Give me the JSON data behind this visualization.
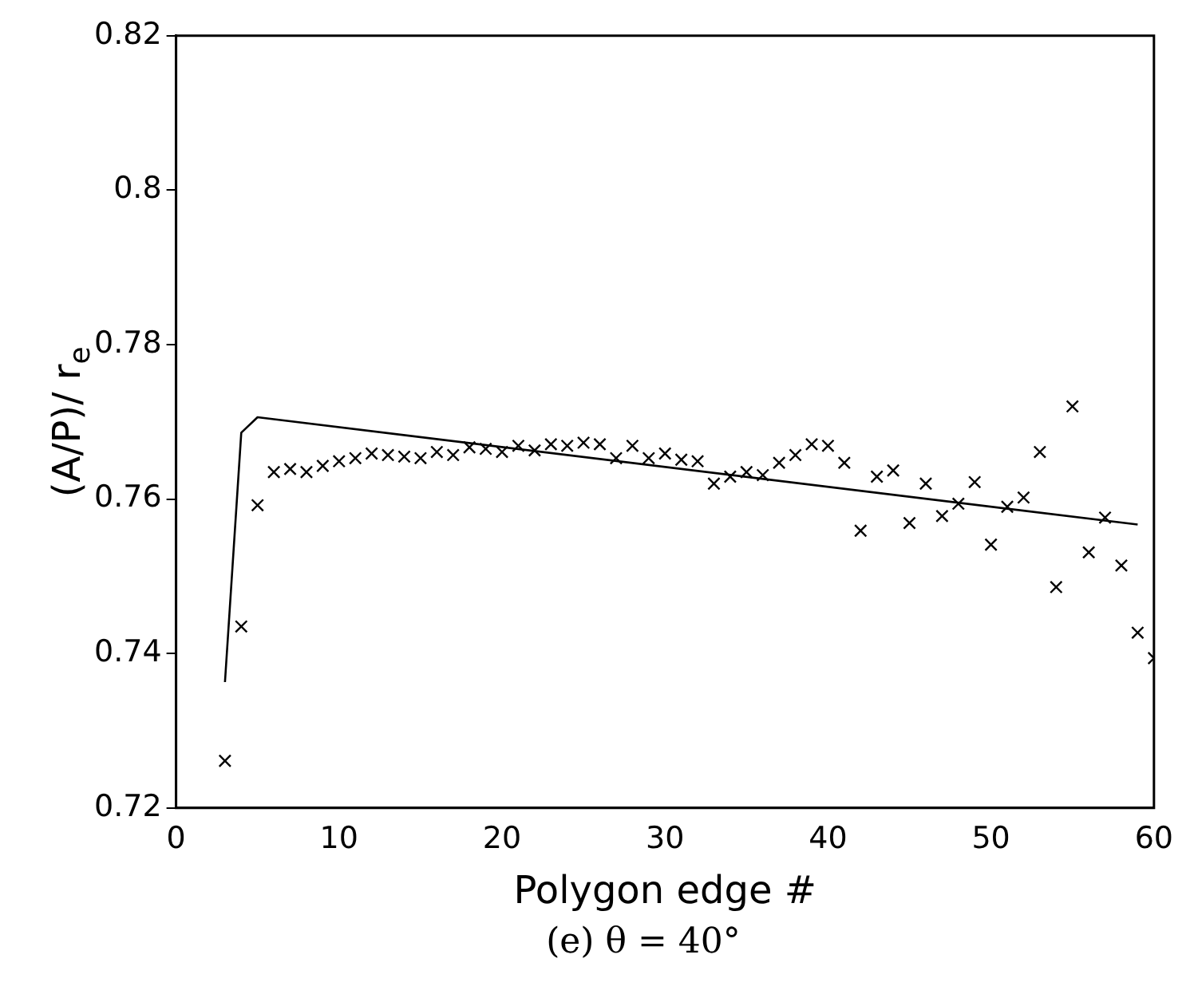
{
  "chart_data": {
    "type": "scatter",
    "xlabel": "Polygon edge #",
    "ylabel": "(A/P)/ r$_{e}$",
    "annotations": [
      "(e) θ = 40°"
    ],
    "xlim": [
      0,
      60
    ],
    "xticks": [
      0,
      10,
      20,
      30,
      40,
      50,
      60
    ],
    "ylim": [
      0.72,
      0.82
    ],
    "yticks": [
      0.72,
      0.74,
      0.76,
      0.78,
      0.8,
      0.82
    ],
    "grid": false,
    "legend": false,
    "series": [
      {
        "type": "scatter",
        "color": "#000000",
        "marker": "cross",
        "x": [
          3,
          4,
          5,
          6,
          7,
          8,
          9,
          10,
          11,
          12,
          13,
          14,
          15,
          16,
          17,
          18,
          19,
          20,
          21,
          22,
          23,
          24,
          25,
          26,
          27,
          28,
          29,
          30,
          31,
          32,
          33,
          34,
          35,
          36,
          37,
          38,
          39,
          40,
          41,
          42,
          43,
          44,
          45,
          46,
          47,
          48,
          49,
          50,
          51,
          52,
          53,
          54,
          55,
          56,
          57,
          58,
          59,
          60
        ],
        "values": [
          0.7261,
          0.7435,
          0.7592,
          0.7635,
          0.7639,
          0.7635,
          0.7643,
          0.7649,
          0.7653,
          0.7659,
          0.7657,
          0.7655,
          0.7653,
          0.7661,
          0.7657,
          0.7667,
          0.7665,
          0.7661,
          0.7669,
          0.7663,
          0.7671,
          0.7669,
          0.7673,
          0.7671,
          0.7653,
          0.7669,
          0.7653,
          0.7659,
          0.7651,
          0.7649,
          0.762,
          0.7629,
          0.7635,
          0.7631,
          0.7647,
          0.7657,
          0.7671,
          0.7669,
          0.7647,
          0.7559,
          0.7629,
          0.7637,
          0.7569,
          0.762,
          0.7578,
          0.7594,
          0.7622,
          0.7541,
          0.759,
          0.7602,
          0.7661,
          0.7486,
          0.772,
          0.7531,
          0.7576,
          0.7514,
          0.7427,
          0.7394
        ]
      },
      {
        "type": "line",
        "color": "#000000",
        "marker": "none",
        "line_style": "solid",
        "x": [
          3,
          4,
          5,
          59
        ],
        "values": [
          0.7363,
          0.7686,
          0.7706,
          0.7567
        ]
      }
    ]
  }
}
